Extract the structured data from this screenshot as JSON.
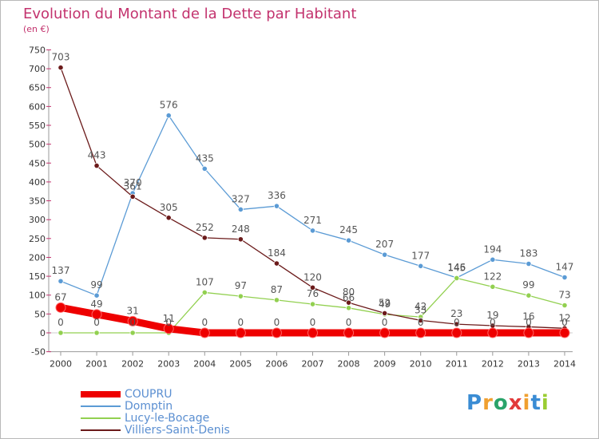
{
  "title": "Evolution du Montant de la Dette par Habitant",
  "subtitle": "(en €)",
  "logo_text": "Proxiti",
  "chart_data": {
    "type": "line",
    "x": [
      "2000",
      "2001",
      "2002",
      "2003",
      "2004",
      "2005",
      "2006",
      "2007",
      "2008",
      "2009",
      "2010",
      "2011",
      "2012",
      "2013",
      "2014"
    ],
    "ylim": [
      -50,
      750
    ],
    "yticks": [
      -50,
      0,
      50,
      100,
      150,
      200,
      250,
      300,
      350,
      400,
      450,
      500,
      550,
      600,
      650,
      700,
      750
    ],
    "grid": false,
    "legend_position": "bottom-left",
    "series": [
      {
        "name": "COUPRU",
        "color": "#ee0000",
        "values": [
          67,
          49,
          31,
          11,
          0,
          0,
          0,
          0,
          0,
          0,
          0,
          0,
          0,
          0,
          0
        ]
      },
      {
        "name": "Domptin",
        "color": "#5b9bd5",
        "values": [
          137,
          99,
          370,
          576,
          435,
          327,
          336,
          271,
          245,
          207,
          177,
          146,
          194,
          183,
          147
        ]
      },
      {
        "name": "Lucy-le-Bocage",
        "color": "#92d050",
        "values": [
          0,
          0,
          0,
          0,
          107,
          97,
          87,
          76,
          66,
          49,
          42,
          145,
          122,
          99,
          73
        ]
      },
      {
        "name": "Villiers-Saint-Denis",
        "color": "#6b1a1a",
        "values": [
          703,
          443,
          361,
          305,
          252,
          248,
          184,
          120,
          80,
          52,
          33,
          23,
          19,
          16,
          12
        ]
      }
    ]
  }
}
